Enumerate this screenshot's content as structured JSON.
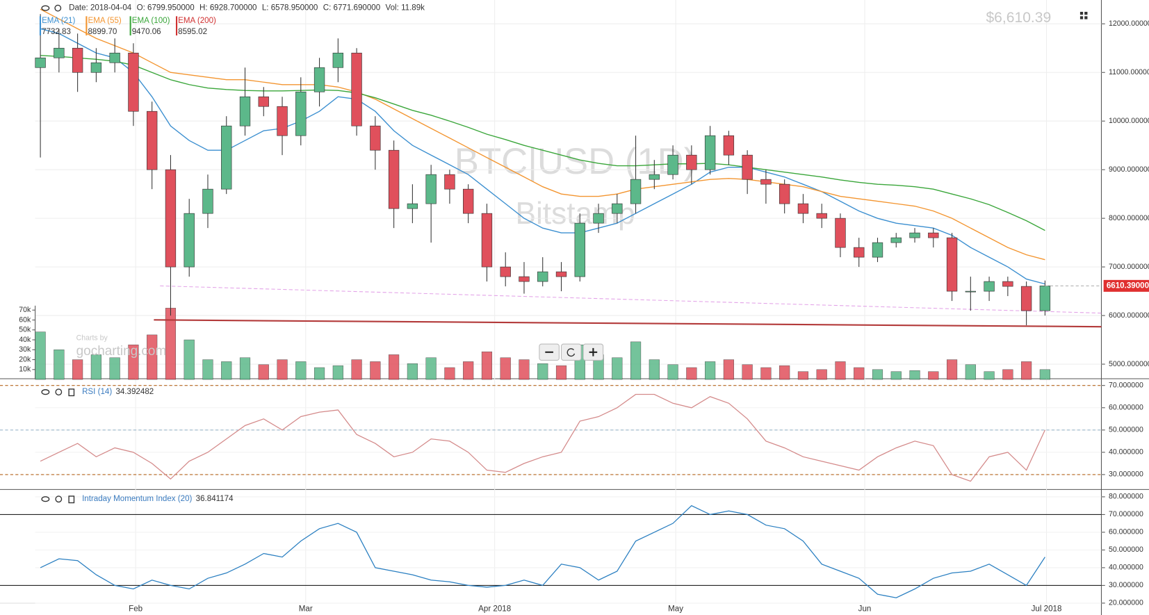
{
  "header": {
    "readout": [
      "Date: 2018-04-04",
      "O: 6799.950000",
      "H: 6928.700000",
      "L: 6578.950000",
      "C: 6771.690000",
      "Vol: 11.89k"
    ],
    "price": "$6,610.39"
  },
  "watermark": {
    "symbol": "BTC|USD (1D)",
    "exchange": "Bitstamp"
  },
  "branding": {
    "line1": "Charts by",
    "line2": "gocharting.com"
  },
  "chart_data": [
    {
      "type": "candlestick",
      "up_color": "#5cb88a",
      "down_color": "#e0505c",
      "grid": true,
      "open": [
        11100,
        11300,
        11500,
        11000,
        11200,
        11400,
        10200,
        9000,
        7000,
        8100,
        8600,
        9900,
        10500,
        10300,
        9700,
        10600,
        11100,
        11400,
        9900,
        9400,
        8200,
        8300,
        8900,
        8600,
        8100,
        7000,
        6800,
        6700,
        6900,
        6800,
        7900,
        8100,
        8300,
        8800,
        8900,
        9300,
        9000,
        9700,
        9300,
        8800,
        8700,
        8300,
        8100,
        8000,
        7400,
        7200,
        7500,
        7600,
        7700,
        7600,
        6500,
        6500,
        6700,
        6600,
        6100
      ],
      "high": [
        12200,
        11900,
        11800,
        11500,
        11700,
        11600,
        10400,
        9300,
        8400,
        8900,
        10100,
        11100,
        10700,
        10500,
        10900,
        11300,
        11700,
        11500,
        10100,
        9600,
        8700,
        9100,
        9000,
        8700,
        8300,
        7300,
        7100,
        7200,
        7100,
        8100,
        8300,
        8500,
        9700,
        9200,
        9500,
        9500,
        9900,
        9800,
        9400,
        9000,
        8800,
        8500,
        8300,
        8100,
        7600,
        7600,
        7700,
        7800,
        7800,
        7700,
        6800,
        6800,
        6800,
        6700,
        6720
      ],
      "low": [
        9250,
        11000,
        10600,
        10800,
        11000,
        9900,
        8600,
        6000,
        6800,
        7800,
        8500,
        9700,
        10100,
        9300,
        9500,
        10300,
        10800,
        9700,
        9000,
        7800,
        7900,
        7500,
        8300,
        7900,
        6700,
        6600,
        6450,
        6600,
        6500,
        6700,
        7700,
        7900,
        8100,
        8600,
        8800,
        8700,
        8900,
        9100,
        8500,
        8300,
        8100,
        7900,
        7800,
        7200,
        7000,
        7100,
        7400,
        7500,
        7400,
        6300,
        6100,
        6300,
        6400,
        5800,
        6000
      ],
      "close": [
        11300,
        11500,
        11000,
        11200,
        11400,
        10200,
        9000,
        7000,
        8100,
        8600,
        9900,
        10500,
        10300,
        9700,
        10600,
        11100,
        11400,
        9900,
        9400,
        8200,
        8300,
        8900,
        8600,
        8100,
        7000,
        6800,
        6700,
        6900,
        6800,
        7900,
        8100,
        8300,
        8800,
        8900,
        9300,
        9000,
        9700,
        9300,
        8800,
        8700,
        8300,
        8100,
        8000,
        7400,
        7200,
        7500,
        7600,
        7700,
        7600,
        6500,
        6500,
        6700,
        6600,
        6100,
        6610
      ],
      "xlim": [
        -0.28,
        57.03
      ],
      "xticks": [
        {
          "value": 5.12,
          "label": "Feb"
        },
        {
          "value": 14.26,
          "label": "Mar"
        },
        {
          "value": 24.42,
          "label": "Apr 2018"
        },
        {
          "value": 34.15,
          "label": "May"
        },
        {
          "value": 44.31,
          "label": "Jun"
        },
        {
          "value": 54.08,
          "label": "Jul 2018"
        }
      ],
      "ylim": [
        4700,
        12490
      ],
      "yticks": [
        {
          "value": 5000,
          "label": "5000.000000"
        },
        {
          "value": 6000,
          "label": "6000.000000"
        },
        {
          "value": 7000,
          "label": "7000.000000"
        },
        {
          "value": 8000,
          "label": "8000.000000"
        },
        {
          "value": 9000,
          "label": "9000.000000"
        },
        {
          "value": 10000,
          "label": "10000.000000"
        },
        {
          "value": 11000,
          "label": "11000.000000"
        },
        {
          "value": 12000,
          "label": "12000.000000"
        }
      ],
      "last_price": {
        "value": 6610.39,
        "label": "6610.39000",
        "color": "#e03030"
      },
      "volume": {
        "values": [
          48000,
          30000,
          20000,
          25000,
          22000,
          35000,
          45000,
          72000,
          40000,
          20000,
          18000,
          22000,
          15000,
          20000,
          18000,
          12000,
          14000,
          20000,
          18000,
          25000,
          16000,
          22000,
          12000,
          18000,
          28000,
          22000,
          20000,
          16000,
          14000,
          35000,
          25000,
          22000,
          38000,
          20000,
          15000,
          12000,
          18000,
          20000,
          15000,
          12000,
          14000,
          8000,
          10000,
          18000,
          12000,
          10000,
          8000,
          9000,
          8000,
          20000,
          15000,
          8000,
          10000,
          18000,
          10000
        ],
        "ylim": [
          0,
          70000
        ],
        "yticks": [
          {
            "value": 10000,
            "label": "10k"
          },
          {
            "value": 20000,
            "label": "20k"
          },
          {
            "value": 30000,
            "label": "30k"
          },
          {
            "value": 40000,
            "label": "40k"
          },
          {
            "value": 50000,
            "label": "50k"
          },
          {
            "value": 60000,
            "label": "60k"
          },
          {
            "value": 70000,
            "label": "70k"
          }
        ]
      },
      "overlays": [
        {
          "name": "EMA (21)",
          "color": "#3b8fd0",
          "readout": "7732.83",
          "values": [
            11900,
            11800,
            11600,
            11400,
            11300,
            11000,
            10500,
            9900,
            9600,
            9400,
            9400,
            9600,
            9800,
            9850,
            10000,
            10200,
            10500,
            10450,
            10200,
            9800,
            9500,
            9300,
            9100,
            8900,
            8600,
            8300,
            8000,
            7800,
            7700,
            7700,
            7800,
            7900,
            8100,
            8300,
            8500,
            8700,
            8950,
            9050,
            9050,
            8950,
            8850,
            8700,
            8550,
            8350,
            8150,
            8000,
            7900,
            7850,
            7800,
            7650,
            7400,
            7200,
            7000,
            6750,
            6650
          ]
        },
        {
          "name": "EMA (55)",
          "color": "#f39530",
          "readout": "8899.70",
          "values": [
            12300,
            12100,
            11900,
            11700,
            11550,
            11400,
            11200,
            11000,
            10950,
            10900,
            10850,
            10850,
            10800,
            10750,
            10750,
            10750,
            10700,
            10600,
            10450,
            10250,
            10050,
            9850,
            9650,
            9450,
            9250,
            9050,
            8850,
            8650,
            8500,
            8450,
            8450,
            8500,
            8600,
            8650,
            8700,
            8750,
            8800,
            8820,
            8800,
            8750,
            8700,
            8650,
            8550,
            8450,
            8400,
            8350,
            8300,
            8250,
            8150,
            8000,
            7800,
            7600,
            7400,
            7250,
            7150
          ]
        },
        {
          "name": "EMA (100)",
          "color": "#3aa63a",
          "readout": "9470.06",
          "values": [
            11350,
            11330,
            11300,
            11270,
            11230,
            11150,
            11000,
            10850,
            10750,
            10680,
            10650,
            10630,
            10620,
            10620,
            10630,
            10640,
            10630,
            10580,
            10480,
            10350,
            10220,
            10120,
            10000,
            9870,
            9730,
            9620,
            9500,
            9400,
            9300,
            9200,
            9130,
            9080,
            9080,
            9100,
            9120,
            9120,
            9130,
            9100,
            9050,
            9000,
            8950,
            8900,
            8850,
            8790,
            8740,
            8700,
            8680,
            8650,
            8600,
            8500,
            8400,
            8280,
            8120,
            7950,
            7750
          ]
        }
      ],
      "legend_only": [
        {
          "name": "EMA (200)",
          "color": "#d03030",
          "readout": "8595.02"
        }
      ],
      "trendlines": [
        {
          "color": "#e3a3e8",
          "style": "dashed",
          "from": [
            6.43,
            6610
          ],
          "to": [
            57.03,
            6050
          ]
        },
        {
          "color": "#b33a3a",
          "style": "solid",
          "from": [
            6.1,
            5910
          ],
          "to": [
            57.03,
            5770
          ]
        }
      ]
    },
    {
      "type": "line",
      "name": "RSI (14)",
      "readout": "34.392482",
      "color": "#d48a8a",
      "grid": true,
      "values": [
        36,
        40,
        44,
        38,
        42,
        40,
        35,
        28,
        36,
        40,
        46,
        52,
        55,
        50,
        56,
        58,
        59,
        48,
        44,
        38,
        40,
        46,
        45,
        40,
        32,
        31,
        35,
        38,
        40,
        54,
        56,
        60,
        66,
        66,
        62,
        60,
        65,
        62,
        55,
        45,
        42,
        38,
        36,
        34,
        32,
        38,
        42,
        45,
        43,
        30,
        27,
        38,
        40,
        32,
        50
      ],
      "ylim": [
        23.3,
        70.7
      ],
      "yticks": [
        {
          "value": 30,
          "label": "30.000000"
        },
        {
          "value": 40,
          "label": "40.000000"
        },
        {
          "value": 50,
          "label": "50.000000"
        },
        {
          "value": 60,
          "label": "60.000000"
        },
        {
          "value": 70,
          "label": "70.000000"
        }
      ],
      "levels": [
        {
          "value": 70,
          "color": "#b5651d",
          "style": "dashed"
        },
        {
          "value": 50,
          "color": "#9bb7cc",
          "style": "dashed"
        },
        {
          "value": 30,
          "color": "#b5651d",
          "style": "dashed"
        }
      ]
    },
    {
      "type": "line",
      "name": "Intraday Momentum Index (20)",
      "readout": "36.841174",
      "color": "#2a7fc1",
      "grid": true,
      "values": [
        40,
        45,
        44,
        36,
        30,
        28,
        33,
        30,
        28,
        34,
        37,
        42,
        48,
        46,
        55,
        62,
        65,
        60,
        40,
        38,
        36,
        33,
        32,
        30,
        29,
        30,
        33,
        30,
        42,
        40,
        33,
        38,
        55,
        60,
        65,
        75,
        70,
        72,
        70,
        64,
        62,
        55,
        42,
        38,
        34,
        25,
        23,
        28,
        34,
        37,
        38,
        42,
        36,
        30,
        46
      ],
      "ylim": [
        13.3,
        83.3
      ],
      "yticks": [
        {
          "value": 20,
          "label": "20.000000"
        },
        {
          "value": 30,
          "label": "30.000000"
        },
        {
          "value": 40,
          "label": "40.000000"
        },
        {
          "value": 50,
          "label": "50.000000"
        },
        {
          "value": 60,
          "label": "60.000000"
        },
        {
          "value": 70,
          "label": "70.000000"
        },
        {
          "value": 80,
          "label": "80.000000"
        }
      ],
      "levels": [
        {
          "value": 70,
          "color": "#222222",
          "style": "solid"
        },
        {
          "value": 30,
          "color": "#222222",
          "style": "solid"
        }
      ]
    }
  ]
}
